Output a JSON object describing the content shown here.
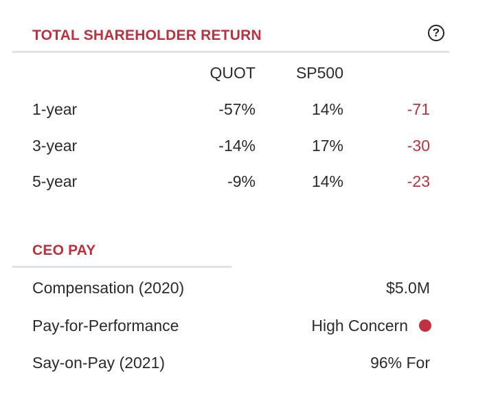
{
  "tsr": {
    "title": "TOTAL SHAREHOLDER RETURN",
    "help_icon": "question-circle-icon",
    "columns": [
      "QUOT",
      "SP500"
    ],
    "rows": [
      {
        "period": "1-year",
        "quot": "-57%",
        "sp500": "14%",
        "diff": "-71"
      },
      {
        "period": "3-year",
        "quot": "-14%",
        "sp500": "17%",
        "diff": "-30"
      },
      {
        "period": "5-year",
        "quot": "-9%",
        "sp500": "14%",
        "diff": "-23"
      }
    ]
  },
  "ceo_pay": {
    "title": "CEO PAY",
    "rows": [
      {
        "label": "Compensation (2020)",
        "value": "$5.0M"
      },
      {
        "label": "Pay-for-Performance",
        "value": "High Concern",
        "indicator_color": "#c1313f"
      },
      {
        "label": "Say-on-Pay (2021)",
        "value": "96% For"
      }
    ]
  },
  "colors": {
    "accent": "#b8323f",
    "divider": "#dde1ea",
    "text": "#2b2b2b"
  }
}
